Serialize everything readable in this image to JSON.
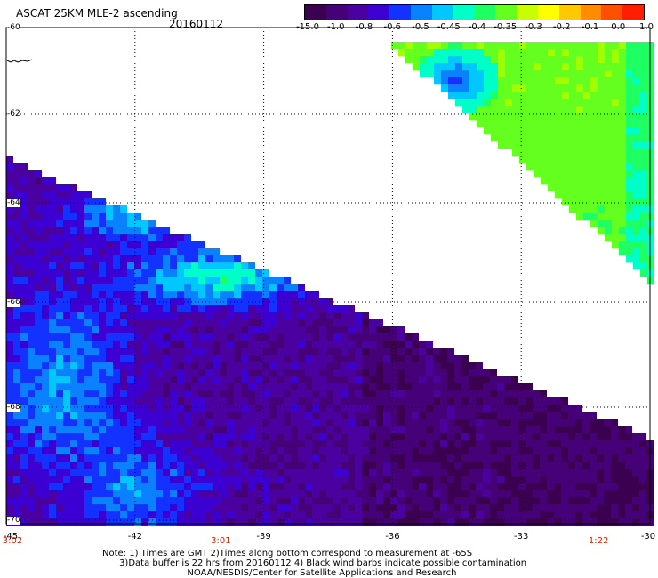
{
  "title": "ASCAT 25KM MLE-2 ascending",
  "date": "20160112",
  "colorbar": {
    "labels": [
      "-15.0",
      "-1.0",
      "-0.8",
      "-0.6",
      "-0.5",
      "-0.45",
      "-0.4",
      "-0.35",
      "-0.3",
      "-0.2",
      "-0.1",
      "0.0",
      "1.0"
    ],
    "colors": [
      "#3c0050",
      "#460078",
      "#4b00a0",
      "#3c00d2",
      "#1432ff",
      "#0a82ff",
      "#00c8ff",
      "#00ffc8",
      "#1eff64",
      "#64ff1e",
      "#c8ff00",
      "#ffff00",
      "#ffc800",
      "#ff8c00",
      "#ff5000",
      "#ff1e00"
    ]
  },
  "latitudes": [
    "-60",
    "-62",
    "-64",
    "-66",
    "-68",
    "-70"
  ],
  "longitudes": [
    "-45",
    "-42",
    "-39",
    "-36",
    "-33",
    "-30"
  ],
  "times": [
    {
      "label": "3:02",
      "lon": -45
    },
    {
      "label": "3:01",
      "lon": -40
    },
    {
      "label": "1:22",
      "lon": -31.2
    }
  ],
  "notes": [
    "Note: 1) Times are GMT 2)Times along bottom correspond to measurement at -65S",
    "      3)Data buffer is 22 hrs from 20160112 4) Black wind barbs indicate possible contamination",
    "                              NOAA/NESDIS/Center for Satellite Applications and Research"
  ],
  "map_extent": {
    "lon": [
      -45,
      -30
    ],
    "lat": [
      -70,
      -60
    ]
  },
  "swaths": [
    "south-west",
    "north-east"
  ]
}
